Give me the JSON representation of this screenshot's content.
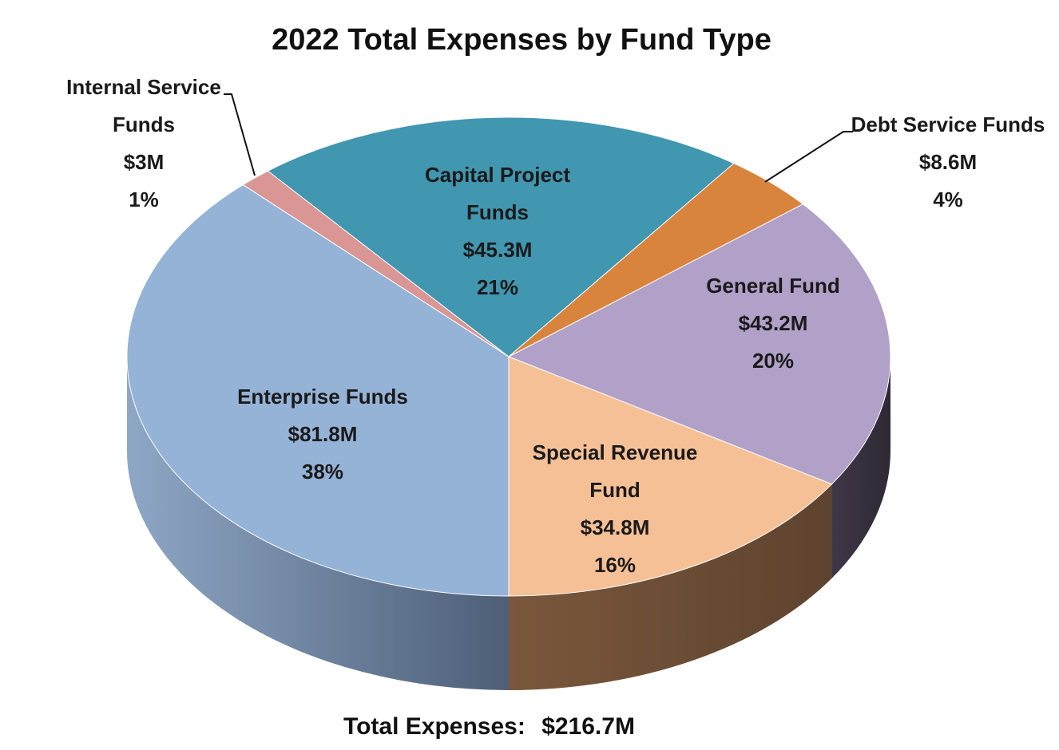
{
  "chart_data": {
    "type": "pie",
    "title": "2022 Total Expenses by Fund Type",
    "total_label": "Total Expenses:",
    "total_value": "$216.7M",
    "total": 216.7,
    "slices": [
      {
        "key": "enterprise",
        "label_lines": [
          "Enterprise Funds"
        ],
        "value": 81.8,
        "value_label": "$81.8M",
        "percent": 38,
        "percent_label": "38%",
        "color": "#95b3d7",
        "side_color": "#6f87a3"
      },
      {
        "key": "internal",
        "label_lines": [
          "Internal Service",
          "Funds"
        ],
        "value": 3,
        "value_label": "$3M",
        "percent": 1,
        "percent_label": "1%",
        "color": "#d99694",
        "side_color": "#a86f6d"
      },
      {
        "key": "capital",
        "label_lines": [
          "Capital Project",
          "Funds"
        ],
        "value": 45.3,
        "value_label": "$45.3M",
        "percent": 21,
        "percent_label": "21%",
        "color": "#4196b0",
        "side_color": "#2e6e82"
      },
      {
        "key": "debt",
        "label_lines": [
          "Debt Service Funds"
        ],
        "value": 8.6,
        "value_label": "$8.6M",
        "percent": 4,
        "percent_label": "4%",
        "color": "#d9843d",
        "side_color": "#9e5f2a"
      },
      {
        "key": "general",
        "label_lines": [
          "General Fund"
        ],
        "value": 43.2,
        "value_label": "$43.2M",
        "percent": 20,
        "percent_label": "20%",
        "color": "#b1a0c7",
        "side_color": "#4a3f55"
      },
      {
        "key": "special",
        "label_lines": [
          "Special Revenue",
          "Fund"
        ],
        "value": 34.8,
        "value_label": "$34.8M",
        "percent": 16,
        "percent_label": "16%",
        "color": "#f6c096",
        "side_color": "#6b4b33"
      }
    ]
  }
}
